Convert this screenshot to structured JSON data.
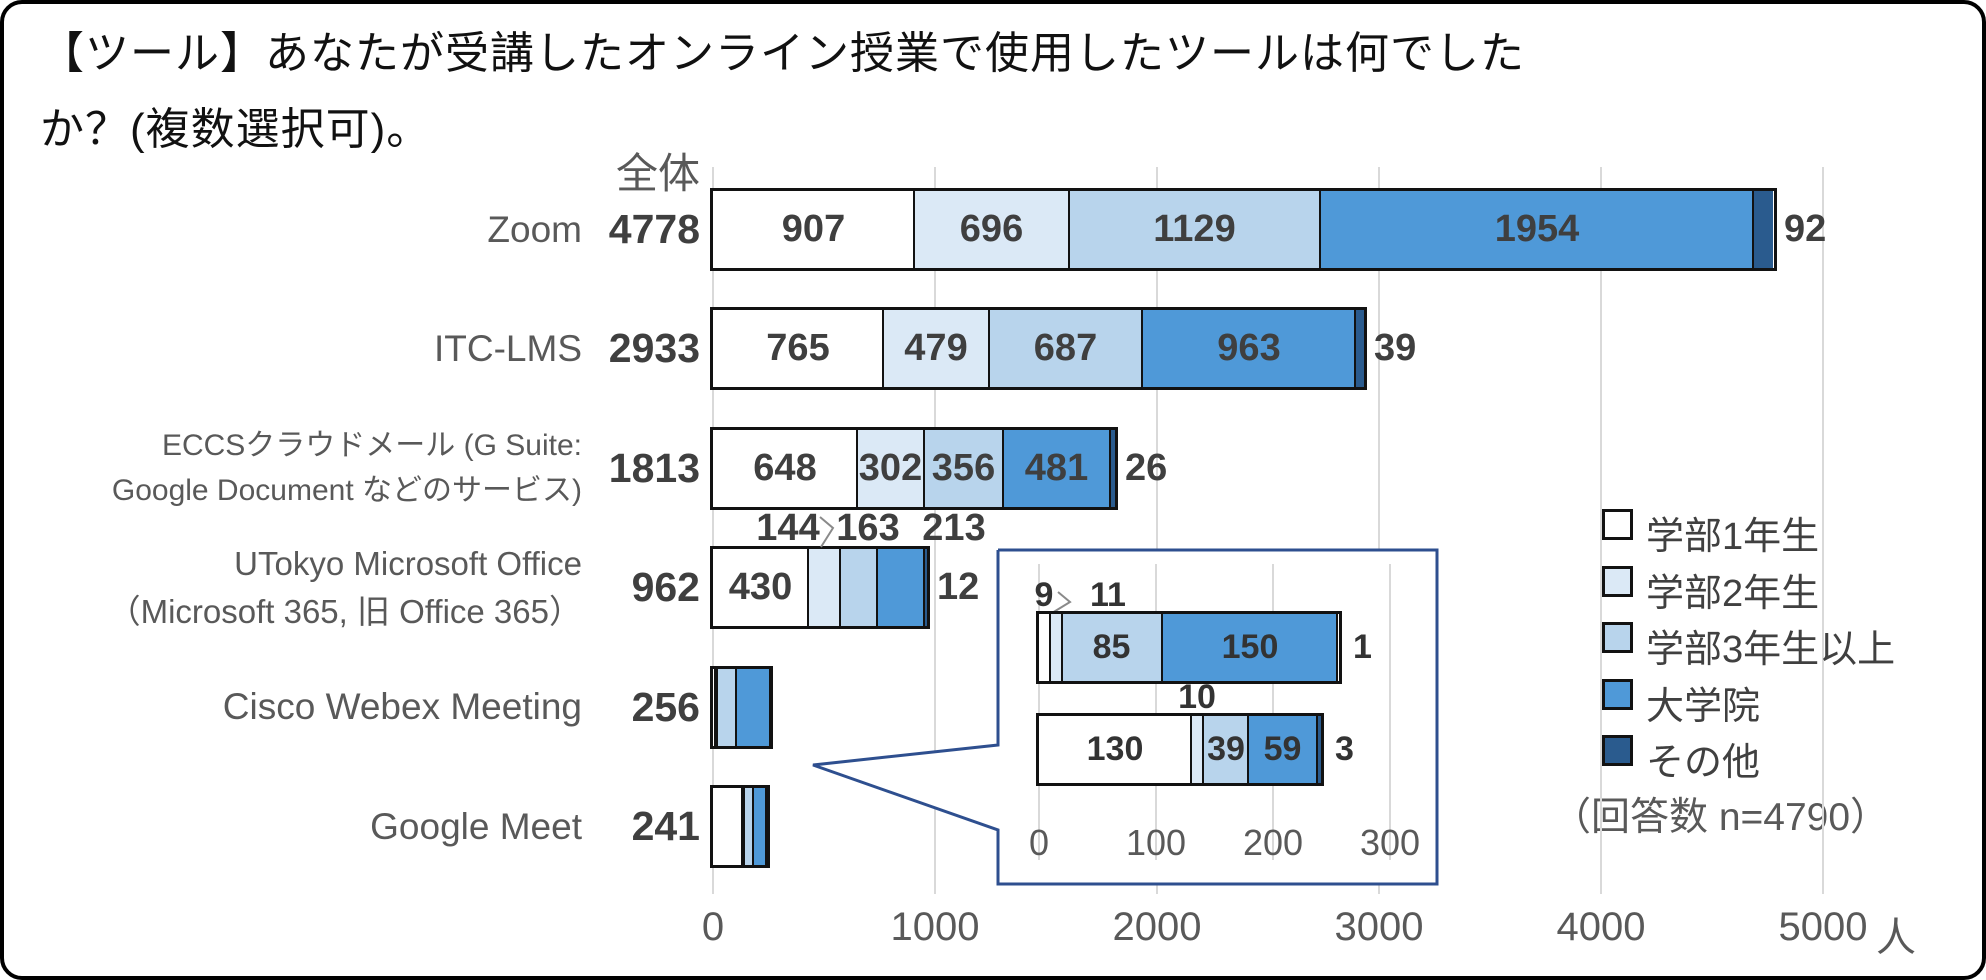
{
  "title": "【ツール】あなたが受講したオンライン授業で使用したツールは何でしたか？(複数選択可)。",
  "chart_data": {
    "type": "bar",
    "orientation": "horizontal",
    "stacked": true,
    "total_header": "全体",
    "series_names": [
      "学部1年生",
      "学部2年生",
      "学部3年生以上",
      "大学院",
      "その他"
    ],
    "series_colors": [
      "#ffffff",
      "#dbe9f6",
      "#b8d4ec",
      "#4f99d8",
      "#2a5b8e"
    ],
    "rows": [
      {
        "label_lines": [
          "Zoom"
        ],
        "total": 4778,
        "values": [
          907,
          696,
          1129,
          1954,
          92
        ]
      },
      {
        "label_lines": [
          "ITC-LMS"
        ],
        "total": 2933,
        "values": [
          765,
          479,
          687,
          963,
          39
        ]
      },
      {
        "label_lines": [
          "ECCSクラウドメール (G Suite:",
          "Google Document などのサービス)"
        ],
        "total": 1813,
        "values": [
          648,
          302,
          356,
          481,
          26
        ]
      },
      {
        "label_lines": [
          "UTokyo Microsoft Office",
          "（Microsoft 365, 旧 Office 365）"
        ],
        "total": 962,
        "values": [
          430,
          144,
          163,
          213,
          12
        ]
      },
      {
        "label_lines": [
          "Cisco Webex Meeting"
        ],
        "total": 256,
        "values": [
          9,
          11,
          85,
          150,
          1
        ]
      },
      {
        "label_lines": [
          "Google Meet"
        ],
        "total": 241,
        "values": [
          130,
          10,
          39,
          59,
          3
        ]
      }
    ],
    "x_axis": {
      "min": 0,
      "max": 5000,
      "ticks": [
        0,
        1000,
        2000,
        3000,
        4000,
        5000
      ],
      "unit": "人",
      "grid": true
    },
    "legend": {
      "position": "right",
      "entries": [
        "学部1年生",
        "学部2年生",
        "学部3年生以上",
        "大学院",
        "その他"
      ]
    },
    "note": "（回答数 n=4790）",
    "inset": {
      "description": "magnified view of the two smallest bars",
      "rows": [
        "Cisco Webex Meeting",
        "Google Meet"
      ],
      "row_indexes": [
        4,
        5
      ],
      "x_axis": {
        "min": 0,
        "max": 300,
        "ticks": [
          0,
          100,
          200,
          300
        ]
      }
    }
  }
}
